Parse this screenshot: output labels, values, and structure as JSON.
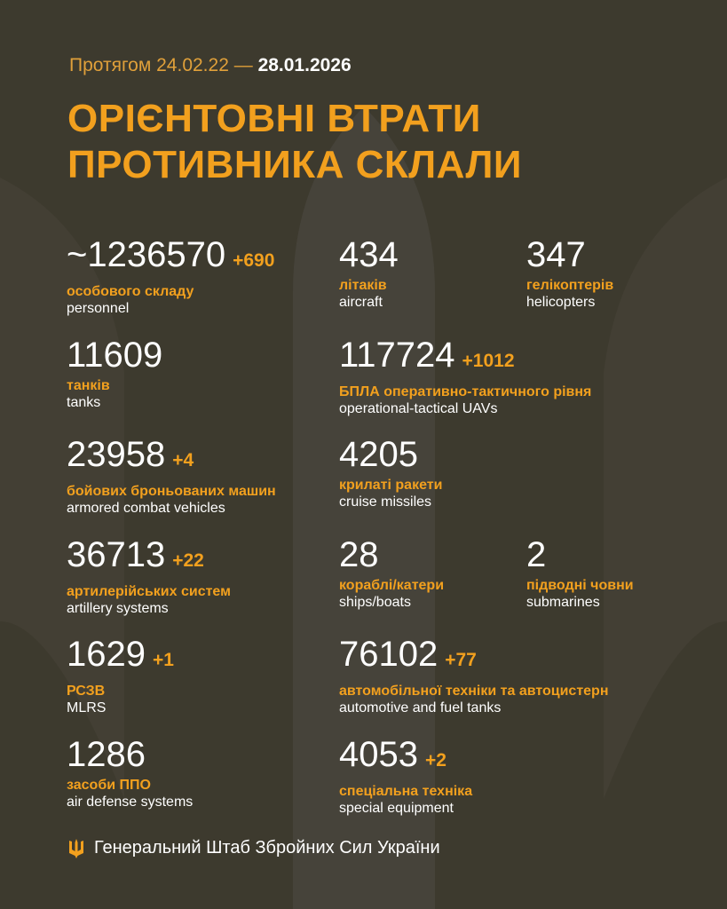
{
  "header": {
    "period_prefix": "Протягом 24.02.22 —",
    "period_end": "28.01.2026",
    "title_line1": "ОРІЄНТОВНІ ВТРАТИ",
    "title_line2": "ПРОТИВНИКА СКЛАЛИ"
  },
  "colors": {
    "background": "#3d3a2e",
    "accent": "#f2a01e",
    "text": "#ffffff"
  },
  "items": [
    {
      "value": "~1236570",
      "delta": "+690",
      "ua": "особового складу",
      "en": "personnel"
    },
    {
      "value": "434",
      "delta": "",
      "ua": "літаків",
      "en": "aircraft"
    },
    {
      "value": "347",
      "delta": "",
      "ua": "гелікоптерів",
      "en": "helicopters"
    },
    {
      "value": "11609",
      "delta": "",
      "ua": "танків",
      "en": "tanks"
    },
    {
      "value": "117724",
      "delta": "+1012",
      "ua": "БПЛА оперативно-тактичного рівня",
      "en": "operational-tactical UAVs"
    },
    {
      "value": "23958",
      "delta": "+4",
      "ua": "бойових броньованих машин",
      "en": "armored combat vehicles"
    },
    {
      "value": "4205",
      "delta": "",
      "ua": "крилаті ракети",
      "en": "cruise missiles"
    },
    {
      "value": "36713",
      "delta": "+22",
      "ua": "артилерійських систем",
      "en": "artillery systems"
    },
    {
      "value": "28",
      "delta": "",
      "ua": "кораблі/катери",
      "en": "ships/boats"
    },
    {
      "value": "2",
      "delta": "",
      "ua": "підводні човни",
      "en": "submarines"
    },
    {
      "value": "1629",
      "delta": "+1",
      "ua": "РСЗВ",
      "en": "MLRS"
    },
    {
      "value": "76102",
      "delta": "+77",
      "ua": "автомобільної техніки та автоцистерн",
      "en": "automotive and fuel tanks"
    },
    {
      "value": "1286",
      "delta": "",
      "ua": "засоби ППО",
      "en": "air defense systems"
    },
    {
      "value": "4053",
      "delta": "+2",
      "ua": "спеціальна техніка",
      "en": "special equipment"
    }
  ],
  "footer": {
    "icon": "trident-icon",
    "text": "Генеральний Штаб Збройних Сил України"
  }
}
